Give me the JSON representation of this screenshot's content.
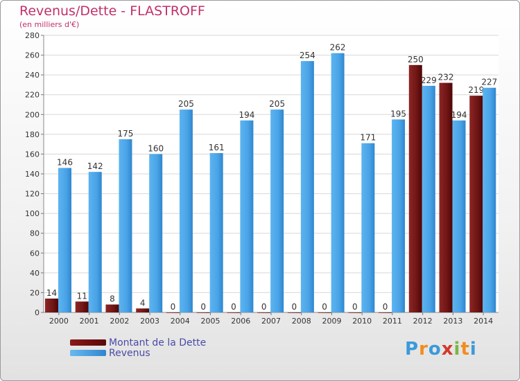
{
  "title": "Revenus/Dette - FLASTROFF",
  "subtitle": "(en milliers d'€)",
  "chart_data": {
    "type": "bar",
    "categories": [
      "2000",
      "2001",
      "2002",
      "2003",
      "2004",
      "2005",
      "2006",
      "2007",
      "2008",
      "2009",
      "2010",
      "2011",
      "2012",
      "2013",
      "2014"
    ],
    "series": [
      {
        "name": "Montant de la Dette",
        "values": [
          14,
          11,
          8,
          4,
          0,
          0,
          0,
          0,
          0,
          0,
          0,
          0,
          250,
          232,
          219
        ],
        "color": "#7b1e1e"
      },
      {
        "name": "Revenus",
        "values": [
          146,
          142,
          175,
          160,
          205,
          161,
          194,
          205,
          254,
          262,
          171,
          195,
          229,
          194,
          227
        ],
        "color": "#4aa3e6"
      }
    ],
    "ylim": [
      0,
      280
    ],
    "yticks": [
      0,
      20,
      40,
      60,
      80,
      100,
      120,
      140,
      160,
      180,
      200,
      220,
      240,
      260,
      280
    ],
    "grid": true,
    "legend": "bottom-left"
  },
  "legend": {
    "debt_label": "Montant de la Dette",
    "revenue_label": "Revenus"
  },
  "logo": {
    "letters": [
      "P",
      "r",
      "o",
      "x",
      "i",
      "t",
      "i"
    ],
    "colors": [
      "#3a9ad9",
      "#f28c1e",
      "#3a9ad9",
      "#d3392b",
      "#7ab648",
      "#f28c1e",
      "#3a9ad9"
    ]
  }
}
